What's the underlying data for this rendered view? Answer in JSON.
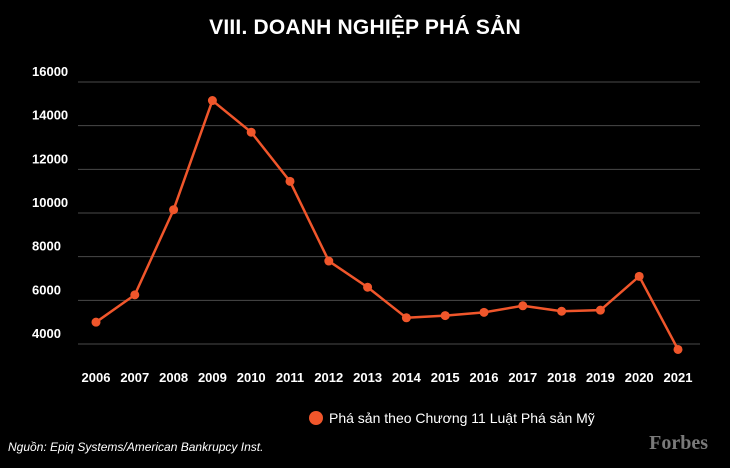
{
  "chart_data": {
    "type": "line",
    "title": "VIII. DOANH NGHIỆP PHÁ SẢN",
    "xlabel": "",
    "ylabel": "",
    "ylim": [
      3000,
      16000
    ],
    "yticks": [
      4000,
      6000,
      8000,
      10000,
      12000,
      14000,
      16000
    ],
    "x": [
      "2006",
      "2007",
      "2008",
      "2009",
      "2010",
      "2011",
      "2012",
      "2013",
      "2014",
      "2015",
      "2016",
      "2017",
      "2018",
      "2019",
      "2020",
      "2021"
    ],
    "series": [
      {
        "name": "Phá sản theo Chương 11 Luật Phá sản Mỹ",
        "color": "#f0562b",
        "values": [
          5000,
          6250,
          10150,
          15150,
          13700,
          11450,
          7800,
          6600,
          5200,
          5300,
          5450,
          5750,
          5500,
          5550,
          7100,
          3750
        ]
      }
    ],
    "legend_position": "bottom-center",
    "grid": true
  },
  "footer": {
    "source": "Nguồn: Epiq Systems/American Bankrupcy Inst.",
    "watermark": "Forbes"
  }
}
